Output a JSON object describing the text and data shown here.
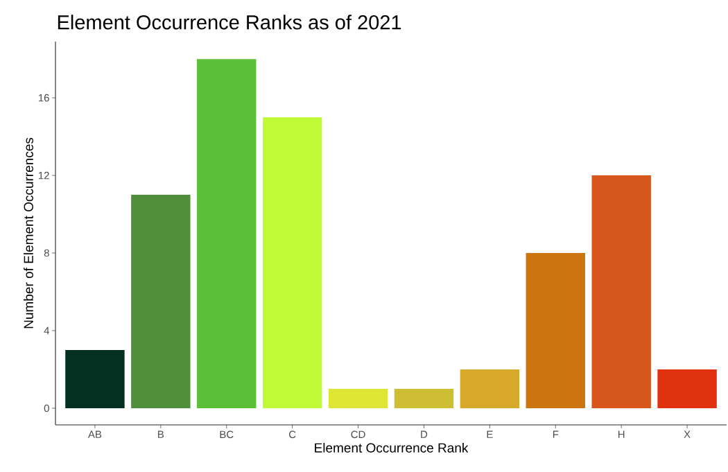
{
  "chart_data": {
    "type": "bar",
    "title": "Element Occurrence Ranks as of 2021",
    "xlabel": "Element Occurrence Rank",
    "ylabel": "Number of Element Occurrences",
    "categories": [
      "AB",
      "B",
      "BC",
      "C",
      "CD",
      "D",
      "E",
      "F",
      "H",
      "X"
    ],
    "values": [
      3,
      11,
      18,
      15,
      1,
      1,
      2,
      8,
      12,
      2
    ],
    "colors": [
      "#033020",
      "#4f8f3a",
      "#5bbf38",
      "#c0f936",
      "#dfe534",
      "#cdbe33",
      "#d8a82a",
      "#cc7510",
      "#d7561c",
      "#e0320e"
    ],
    "ylim": [
      -0.86,
      18.9
    ],
    "yticks": [
      0,
      4,
      8,
      12,
      16
    ]
  }
}
